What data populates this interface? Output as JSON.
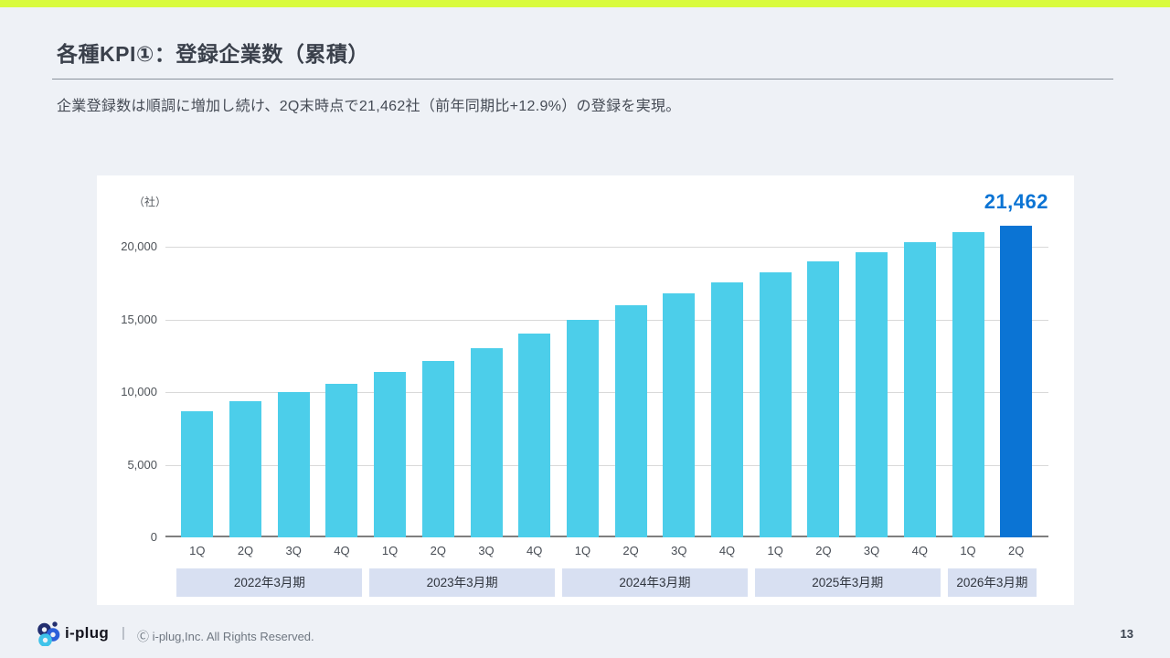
{
  "slide": {
    "title": "各種KPI①：登録企業数（累積）",
    "subtitle": "企業登録数は順調に増加し続け、2Q末時点で21,462社（前年同期比+12.9%）の登録を実現。",
    "page_number": "13"
  },
  "footer": {
    "logo_text": "i-plug",
    "separator": "|",
    "copyright": "Ⓒ i-plug,Inc. All Rights Reserved."
  },
  "theme": {
    "accent_strip": "#D9FB3D",
    "page_bg": "#EEF1F6",
    "card_bg": "#FFFFFF",
    "title_color": "#3A404B",
    "text_color": "#454B55",
    "logo_navy": "#222E6F",
    "logo_blue": "#2B5FD9",
    "logo_cyan": "#3FC3EA"
  },
  "chart_data": {
    "type": "bar",
    "title": "登録企業数（累積）",
    "unit_label": "（社）",
    "highlight_value_label": "21,462",
    "highlight_index": 17,
    "grid": true,
    "ylim": [
      0,
      22500
    ],
    "y_ticks": [
      0,
      5000,
      10000,
      15000,
      20000
    ],
    "categories": [
      "1Q",
      "2Q",
      "3Q",
      "4Q",
      "1Q",
      "2Q",
      "3Q",
      "4Q",
      "1Q",
      "2Q",
      "3Q",
      "4Q",
      "1Q",
      "2Q",
      "3Q",
      "4Q",
      "1Q",
      "2Q"
    ],
    "values": [
      8700,
      9350,
      10000,
      10600,
      11400,
      12150,
      13000,
      14000,
      15000,
      16000,
      16800,
      17550,
      18250,
      19010,
      19620,
      20320,
      21000,
      21462
    ],
    "groups": [
      {
        "label": "2022年3月期",
        "quarters": 4
      },
      {
        "label": "2023年3月期",
        "quarters": 4
      },
      {
        "label": "2024年3月期",
        "quarters": 4
      },
      {
        "label": "2025年3月期",
        "quarters": 4
      },
      {
        "label": "2026年3月期",
        "quarters": 2
      }
    ],
    "colors": {
      "bar": "#4CCEEA",
      "bar_highlight": "#0B74D4",
      "value_label": "#0B74D4",
      "gridline": "#D9D9D9",
      "axis_line": "#7F7F7F",
      "band_bg": "#D8E0F2"
    }
  }
}
